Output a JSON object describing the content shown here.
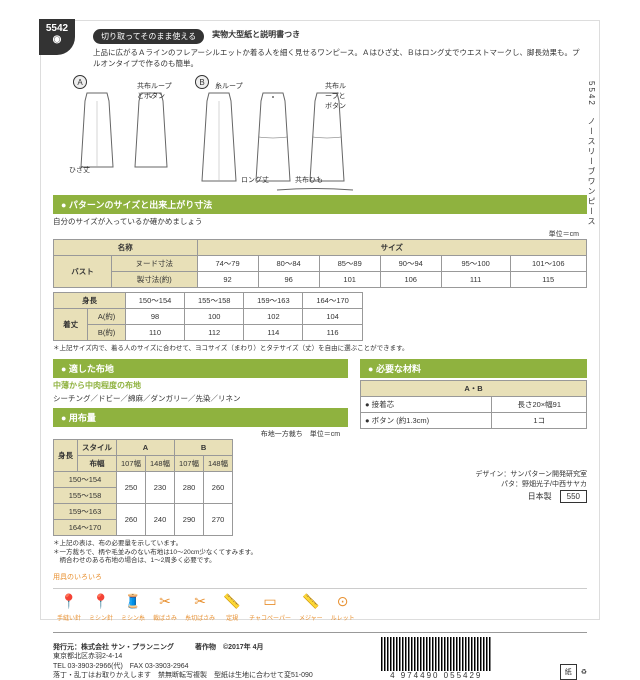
{
  "pattern_number": "5542",
  "side_text": "5542　ノースリーブワンピース",
  "header_pill": "切り取ってそのまま使える",
  "header_bold": "実物大型紙と説明書つき",
  "description": "上品に広がるＡラインのフレアーシルエットか着る人を細く見せるワンピース。Ａはひざ丈、Ｂはロング丈でウエストマークし、脚長効果も。プルオンタイプで作るのも簡単。",
  "diag_labels": {
    "a": "A",
    "b": "B",
    "hiza": "ひざ丈",
    "loop1": "共布ループとボタン",
    "ito": "糸ループ",
    "long": "ロング丈",
    "loop2": "共布ループとボタン",
    "himo": "共布ひも"
  },
  "sec1": "● パターンのサイズと出来上がり寸法",
  "sec1_sub": "自分のサイズが入っているか確かめましょう",
  "unit": "単位＝cm",
  "size_table": {
    "h_name": "名称",
    "h_size": "サイズ",
    "r1": "バスト",
    "r1a": "ヌード寸法",
    "r1b": "製寸法(約)",
    "sizes": [
      "74～79",
      "80～84",
      "85～89",
      "90～94",
      "95～100",
      "101～106"
    ],
    "bust": [
      "92",
      "96",
      "101",
      "106",
      "111",
      "115"
    ],
    "height_l": "身長",
    "heights": [
      "150～154",
      "155～158",
      "159～163",
      "164～170"
    ],
    "len_l": "着丈",
    "len_a": "A(約)",
    "len_b": "B(約)",
    "len_av": [
      "98",
      "100",
      "102",
      "104"
    ],
    "len_bv": [
      "110",
      "112",
      "114",
      "116"
    ]
  },
  "size_note": "＊上記サイズ内で、着る人のサイズに合わせて、ヨコサイズ（まわり）とタテサイズ（丈）を自由に選ぶことができます。",
  "sec2": "● 適した布地",
  "fabric": "中薄から中肉程度の布地",
  "fabric_ex": "シーチング／ドビー／綿麻／ダンガリー／先染／リネン",
  "sec3": "● 用布量",
  "yofu_sub": "布地一方裁ち　単位＝cm",
  "yofu": {
    "h1": "スタイル",
    "h2": "A",
    "h3": "B",
    "h_h": "身長",
    "h_w": "布幅",
    "widths": [
      "107幅",
      "148幅",
      "107幅",
      "148幅"
    ],
    "heights": [
      "150～154",
      "155～158",
      "159～163",
      "164～170"
    ],
    "vals": [
      [
        "250",
        "230",
        "",
        ""
      ],
      [
        "",
        "",
        "280",
        "260"
      ],
      [
        "260",
        "240",
        "",
        ""
      ],
      [
        "",
        "",
        "290",
        "270"
      ]
    ]
  },
  "yofu_note": "＊上記の表は、布の必要量を示しています。\n＊一方裁ちで、柄や毛並みのない布地は10～20cm少なくてすみます。\n　柄合わせのある布地の場合は、1～2周多く必要です。",
  "sec4": "● 必要な材料",
  "mat_h": "A・B",
  "mat": [
    [
      "● 接着芯",
      "長さ20×幅91"
    ],
    [
      "● ボタン (約1.3cm)",
      "1コ"
    ]
  ],
  "credit": "デザイン：サンパターン開発研究室\nパタ：野畑光子/中西サヤカ",
  "price_l": "日本製",
  "price": "550",
  "tools_h": "用具のいろいろ",
  "tools": [
    "手縫い針",
    "ミシン針",
    "ミシン糸",
    "裁ばさみ",
    "糸切ばさみ",
    "定規",
    "チャコペーパー",
    "メジャー",
    "ルレット"
  ],
  "publisher": "発行元：株式会社 サン・プランニング　　　著作物　©2017年 4月",
  "addr": "東京都北区赤羽2-4-14\nTEL 03-3903-2966(代)　FAX 03-3903-2964\n落丁・乱丁はお取りかえします　禁無断転写複製　型紙は生地に合わせて変51-090",
  "barcode": "4 974490 055429",
  "recycle": "紙"
}
